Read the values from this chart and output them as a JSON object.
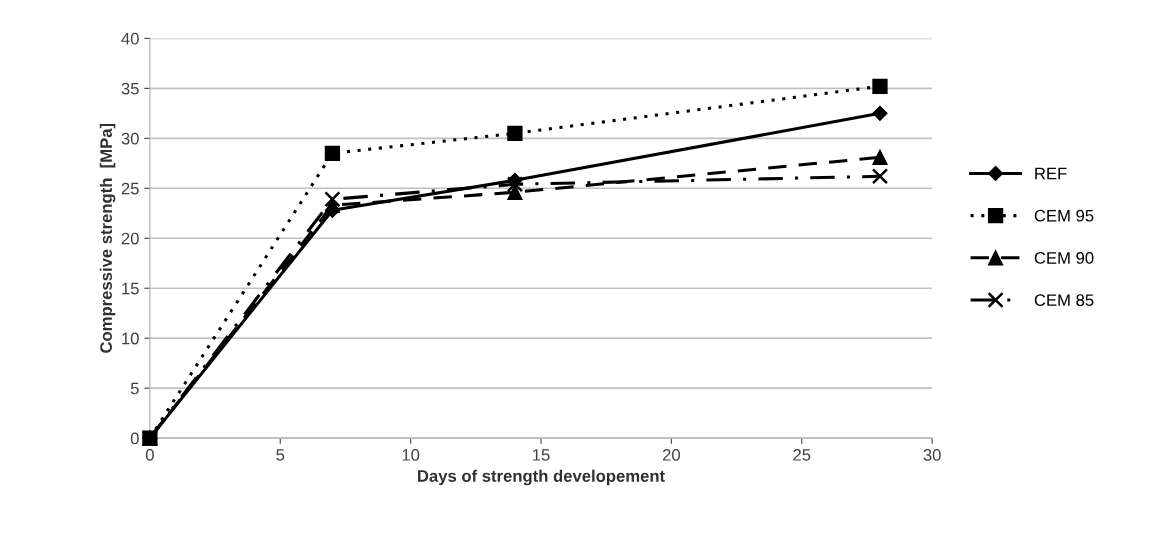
{
  "chart_data": {
    "type": "line",
    "xlabel": "Days of strength developement",
    "ylabel": "Compressive strength  [MPa]",
    "x": [
      0,
      7,
      14,
      28
    ],
    "series": [
      {
        "name": "REF",
        "color": "#000000",
        "values": [
          0,
          22.8,
          25.8,
          32.5
        ],
        "marker": "diamond",
        "line_style": "solid"
      },
      {
        "name": "CEM 95",
        "color": "#000000",
        "values": [
          0,
          28.5,
          30.5,
          35.2
        ],
        "marker": "square",
        "line_style": "dotted"
      },
      {
        "name": "CEM 90",
        "color": "#000000",
        "values": [
          0,
          23.3,
          24.6,
          28.1
        ],
        "marker": "triangle",
        "line_style": "dashed"
      },
      {
        "name": "CEM 85",
        "color": "#000000",
        "values": [
          0,
          23.9,
          25.4,
          26.2
        ],
        "marker": "cross",
        "line_style": "dashdot"
      }
    ],
    "xlim": [
      0,
      30
    ],
    "xticks": [
      0,
      5,
      10,
      15,
      20,
      25,
      30
    ],
    "ylim": [
      0,
      40
    ],
    "yticks": [
      0,
      5,
      10,
      15,
      20,
      25,
      30,
      35,
      40
    ],
    "grid": "y",
    "legend": "right"
  }
}
